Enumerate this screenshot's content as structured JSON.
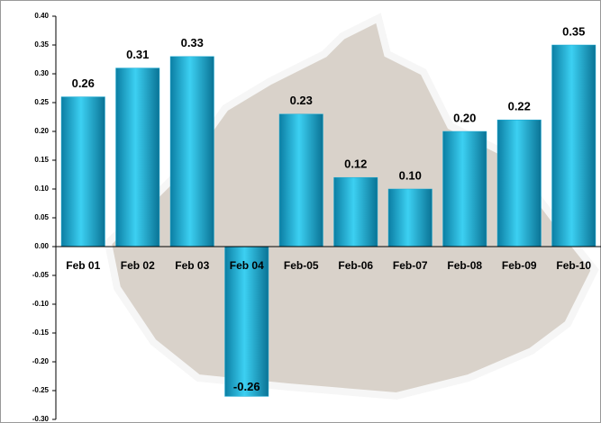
{
  "chart_data": {
    "type": "bar",
    "categories": [
      "Feb 01",
      "Feb 02",
      "Feb 03",
      "Feb 04",
      "Feb-05",
      "Feb-06",
      "Feb-07",
      "Feb-08",
      "Feb-09",
      "Feb-10"
    ],
    "values": [
      0.26,
      0.31,
      0.33,
      -0.26,
      0.23,
      0.12,
      0.1,
      0.2,
      0.22,
      0.35
    ],
    "value_labels": [
      "0.26",
      "0.31",
      "0.33",
      "-0.26",
      "0.23",
      "0.12",
      "0.10",
      "0.20",
      "0.22",
      "0.35"
    ],
    "color": "#16a9d3",
    "ylim": [
      -0.3,
      0.4
    ],
    "yticks": [
      {
        "value": -0.3,
        "label": "-0.30"
      },
      {
        "value": -0.25,
        "label": "-0.25"
      },
      {
        "value": -0.2,
        "label": "-0.20"
      },
      {
        "value": -0.15,
        "label": "-0.15"
      },
      {
        "value": -0.1,
        "label": "-0.10"
      },
      {
        "value": -0.05,
        "label": "-0.05"
      },
      {
        "value": 0,
        "label": "0.00"
      },
      {
        "value": 0.05,
        "label": "0.05"
      },
      {
        "value": 0.1,
        "label": "0.10"
      },
      {
        "value": 0.15,
        "label": "0.15"
      },
      {
        "value": 0.2,
        "label": "0.20"
      },
      {
        "value": 0.25,
        "label": "0.25"
      },
      {
        "value": 0.3,
        "label": "0.30"
      },
      {
        "value": 0.35,
        "label": "0.35"
      },
      {
        "value": 0.4,
        "label": "0.40"
      }
    ],
    "grid": false
  }
}
